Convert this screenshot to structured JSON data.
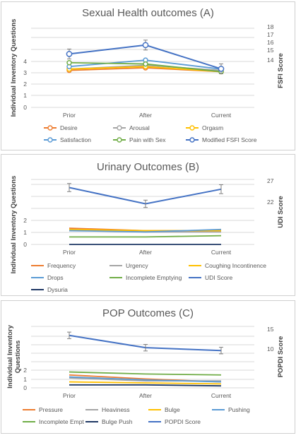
{
  "chart_data": [
    {
      "type": "line",
      "title": "Sexual Health outcomes (A)",
      "ylabel": "Individual Inventory Questions",
      "y2label": "FSFI Score",
      "categories": [
        "Prior",
        "After",
        "Current"
      ],
      "ylim": [
        0,
        6.2
      ],
      "yticks": [
        "0",
        "1",
        "2",
        "3",
        "4"
      ],
      "y2lim": [
        10.2,
        18.2
      ],
      "y2ticks": [
        "14",
        "15",
        "16",
        "17",
        "18"
      ],
      "grid": true,
      "legend_position": "bottom",
      "series": [
        {
          "name": "Desire",
          "axis": "left",
          "color": "#ed7d31",
          "values": [
            2.9,
            3.1,
            2.8
          ],
          "err": [
            0,
            0,
            0
          ]
        },
        {
          "name": "Arousal",
          "axis": "left",
          "color": "#a5a5a5",
          "values": [
            3.0,
            3.3,
            2.9
          ],
          "err": [
            0,
            0,
            0
          ]
        },
        {
          "name": "Orgasm",
          "axis": "left",
          "color": "#ffc000",
          "values": [
            3.0,
            3.2,
            2.8
          ],
          "err": [
            0,
            0,
            0
          ]
        },
        {
          "name": "Satisfaction",
          "axis": "left",
          "color": "#5b9bd5",
          "values": [
            3.2,
            3.7,
            3.0
          ],
          "err": [
            0,
            0,
            0
          ]
        },
        {
          "name": "Pain with Sex",
          "axis": "left",
          "color": "#70ad47",
          "values": [
            3.5,
            3.4,
            2.8
          ],
          "err": [
            0,
            0,
            0
          ]
        },
        {
          "name": "Modified FSFI Score",
          "axis": "right",
          "color": "#4472c4",
          "values": [
            15.6,
            16.5,
            14.1
          ],
          "err": [
            0.5,
            0.5,
            0.5
          ]
        }
      ]
    },
    {
      "type": "line",
      "title": "Urinary Outcomes (B)",
      "ylabel": "Individual Inventory Questions",
      "y2label": "UDI Score",
      "categories": [
        "Prior",
        "After",
        "Current"
      ],
      "ylim": [
        0,
        5.2
      ],
      "yticks": [
        "0",
        "1",
        "2"
      ],
      "y2lim": [
        11,
        27
      ],
      "y2ticks": [
        "22",
        "27"
      ],
      "grid": true,
      "legend_position": "bottom",
      "series": [
        {
          "name": "Frequency",
          "axis": "left",
          "color": "#ed7d31",
          "values": [
            1.3,
            1.1,
            1.1
          ],
          "err": [
            0,
            0,
            0
          ]
        },
        {
          "name": "Urgency",
          "axis": "left",
          "color": "#a5a5a5",
          "values": [
            1.2,
            1.0,
            1.0
          ],
          "err": [
            0,
            0,
            0
          ]
        },
        {
          "name": "Coughing Incontinence",
          "axis": "left",
          "color": "#ffc000",
          "values": [
            1.2,
            1.1,
            1.1
          ],
          "err": [
            0,
            0,
            0
          ]
        },
        {
          "name": "Drops",
          "axis": "left",
          "color": "#5b9bd5",
          "values": [
            1.1,
            1.0,
            1.2
          ],
          "err": [
            0,
            0,
            0
          ]
        },
        {
          "name": "Incomplete Emptying",
          "axis": "left",
          "color": "#70ad47",
          "values": [
            0.6,
            0.6,
            0.7
          ],
          "err": [
            0,
            0,
            0
          ]
        },
        {
          "name": "UDI Score",
          "axis": "right",
          "color": "#4472c4",
          "values": [
            25.0,
            21.0,
            24.6
          ],
          "err": [
            1.0,
            0.9,
            1.1
          ]
        },
        {
          "name": "Dysuria",
          "axis": "left",
          "color": "#1f3864",
          "values": [
            0,
            0,
            0
          ],
          "err": [
            0,
            0,
            0
          ]
        }
      ]
    },
    {
      "type": "line",
      "title": "POP Outcomes (C)",
      "ylabel": "Individual Inventory Questions",
      "y2label": "POPDI Score",
      "categories": [
        "Prior",
        "After",
        "Current"
      ],
      "ylim": [
        0,
        6.2
      ],
      "yticks": [
        "0",
        "1",
        "2"
      ],
      "y2lim": [
        0.2,
        15.2
      ],
      "y2ticks": [
        "10",
        "15"
      ],
      "grid": true,
      "legend_position": "bottom",
      "series": [
        {
          "name": "Pressure",
          "axis": "left",
          "color": "#ed7d31",
          "values": [
            1.3,
            0.9,
            0.6
          ],
          "err": [
            0,
            0,
            0
          ]
        },
        {
          "name": "Heaviness",
          "axis": "left",
          "color": "#a5a5a5",
          "values": [
            1.0,
            0.7,
            0.7
          ],
          "err": [
            0,
            0,
            0
          ]
        },
        {
          "name": "Bulge",
          "axis": "left",
          "color": "#ffc000",
          "values": [
            0.6,
            0.5,
            0.4
          ],
          "err": [
            0,
            0,
            0
          ]
        },
        {
          "name": "Pushing",
          "axis": "left",
          "color": "#5b9bd5",
          "values": [
            1.1,
            0.8,
            0.6
          ],
          "err": [
            0,
            0,
            0
          ]
        },
        {
          "name": "Incomplete Empt",
          "axis": "left",
          "color": "#70ad47",
          "values": [
            1.6,
            1.4,
            1.3
          ],
          "err": [
            0,
            0,
            0
          ]
        },
        {
          "name": "Bulge Push",
          "axis": "left",
          "color": "#1f3864",
          "values": [
            0.3,
            0.3,
            0.2
          ],
          "err": [
            0,
            0,
            0
          ]
        },
        {
          "name": "POPDI Score",
          "axis": "right",
          "color": "#4472c4",
          "values": [
            13.0,
            10.0,
            9.3
          ],
          "err": [
            0.8,
            0.8,
            0.8
          ]
        }
      ]
    }
  ]
}
